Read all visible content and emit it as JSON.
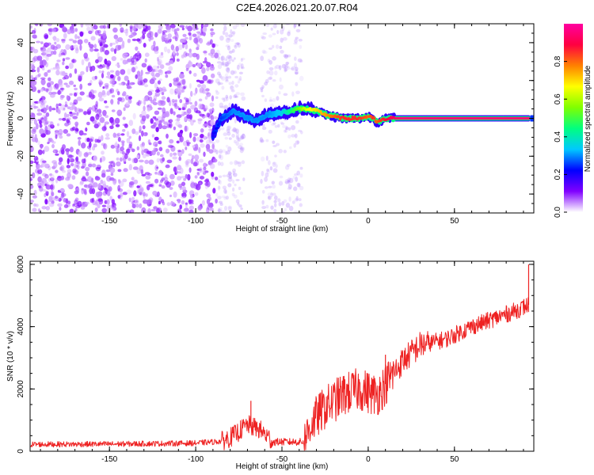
{
  "title": "C2E4.2026.021.20.07.R04",
  "chart_data": [
    {
      "type": "heatmap",
      "xlabel": "Height of straight line (km)",
      "ylabel": "Frequency (Hz)",
      "xlim": [
        -196,
        96
      ],
      "ylim": [
        -50,
        50
      ],
      "xticks": [
        -150,
        -100,
        -50,
        0,
        50
      ],
      "yticks": [
        -40,
        -20,
        0,
        20,
        40
      ],
      "colorbar": {
        "label": "Normalized spectral amplitude",
        "range": [
          0,
          1
        ],
        "ticks": [
          "0.0",
          "0.2",
          "0.4",
          "0.6",
          "0.8"
        ],
        "colormap": [
          "#ffffff",
          "#8000ff",
          "#0000ff",
          "#00c8ff",
          "#00ff80",
          "#80ff00",
          "#ffff00",
          "#ff8000",
          "#ff0040",
          "#ff00a0"
        ]
      },
      "noise_region": {
        "x": [
          -196,
          -88
        ],
        "amplitude": 0.1
      },
      "faint_bands": [
        {
          "x": [
            -88,
            -72
          ],
          "amplitude": 0.05
        },
        {
          "x": [
            -62,
            -38
          ],
          "amplitude": 0.05
        }
      ],
      "ridge": [
        {
          "x": -90,
          "freq": -9,
          "amp": 0.2
        },
        {
          "x": -85,
          "freq": 0,
          "amp": 0.25
        },
        {
          "x": -78,
          "freq": 4,
          "amp": 0.3
        },
        {
          "x": -72,
          "freq": 1,
          "amp": 0.3
        },
        {
          "x": -65,
          "freq": -1,
          "amp": 0.3
        },
        {
          "x": -58,
          "freq": 2,
          "amp": 0.3
        },
        {
          "x": -50,
          "freq": 3,
          "amp": 0.35
        },
        {
          "x": -45,
          "freq": 4,
          "amp": 0.45
        },
        {
          "x": -40,
          "freq": 5,
          "amp": 0.55
        },
        {
          "x": -35,
          "freq": 5,
          "amp": 0.65
        },
        {
          "x": -30,
          "freq": 4,
          "amp": 0.7
        },
        {
          "x": -25,
          "freq": 2,
          "amp": 0.75
        },
        {
          "x": -20,
          "freq": 1,
          "amp": 0.8
        },
        {
          "x": -15,
          "freq": 0,
          "amp": 0.85
        },
        {
          "x": -10,
          "freq": 0,
          "amp": 0.85
        },
        {
          "x": -5,
          "freq": 0,
          "amp": 0.85
        },
        {
          "x": 0,
          "freq": 1,
          "amp": 0.8
        },
        {
          "x": 3,
          "freq": 0,
          "amp": 0.85
        },
        {
          "x": 5,
          "freq": -2,
          "amp": 0.8
        },
        {
          "x": 8,
          "freq": -1,
          "amp": 0.85
        },
        {
          "x": 12,
          "freq": 0,
          "amp": 0.9
        },
        {
          "x": 20,
          "freq": 0,
          "amp": 0.95
        },
        {
          "x": 40,
          "freq": 0,
          "amp": 0.95
        },
        {
          "x": 60,
          "freq": 0,
          "amp": 0.95
        },
        {
          "x": 80,
          "freq": 0,
          "amp": 0.95
        },
        {
          "x": 93,
          "freq": 0,
          "amp": 0.95
        }
      ],
      "ridge_end": {
        "x": 94,
        "freq": 0,
        "amp": 0.25
      }
    },
    {
      "type": "line",
      "xlabel": "Height of straight line (km)",
      "ylabel": "SNR (10 * v/v)",
      "xlim": [
        -196,
        96
      ],
      "ylim": [
        0,
        6100
      ],
      "xticks": [
        -150,
        -100,
        -50,
        0,
        50
      ],
      "yticks": [
        0,
        2000,
        4000,
        6000
      ],
      "series": [
        {
          "color": "#ee2222",
          "trend": [
            {
              "x": -196,
              "y": 220
            },
            {
              "x": -150,
              "y": 230
            },
            {
              "x": -100,
              "y": 260
            },
            {
              "x": -85,
              "y": 320
            },
            {
              "x": -78,
              "y": 500
            },
            {
              "x": -70,
              "y": 850
            },
            {
              "x": -63,
              "y": 700
            },
            {
              "x": -55,
              "y": 300
            },
            {
              "x": -45,
              "y": 300
            },
            {
              "x": -37,
              "y": 300
            },
            {
              "x": -33,
              "y": 900
            },
            {
              "x": -25,
              "y": 1400
            },
            {
              "x": -15,
              "y": 1800
            },
            {
              "x": -5,
              "y": 2000
            },
            {
              "x": 5,
              "y": 1800
            },
            {
              "x": 12,
              "y": 2300
            },
            {
              "x": 20,
              "y": 2900
            },
            {
              "x": 30,
              "y": 3400
            },
            {
              "x": 45,
              "y": 3600
            },
            {
              "x": 60,
              "y": 4000
            },
            {
              "x": 75,
              "y": 4300
            },
            {
              "x": 85,
              "y": 4500
            },
            {
              "x": 93,
              "y": 4700
            }
          ],
          "peaks": [
            {
              "x": -68,
              "y": 1620
            },
            {
              "x": 10,
              "y": 3100
            },
            {
              "x": 93,
              "y": 6000
            }
          ]
        }
      ]
    }
  ]
}
